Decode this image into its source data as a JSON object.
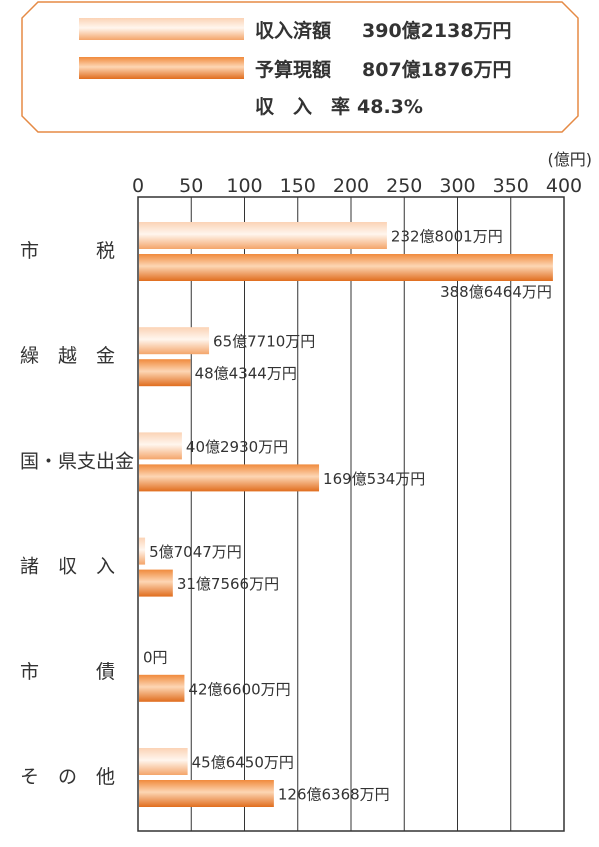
{
  "legend": {
    "received_label": "収入済額",
    "received_value": "390億2138万円",
    "budget_label": "予算現額",
    "budget_value": "807億1876万円",
    "rate_label": "収　入　率",
    "rate_value": "48.3%"
  },
  "chart_data": {
    "type": "bar",
    "orientation": "horizontal",
    "unit": "(億円)",
    "xlim": [
      0,
      400
    ],
    "ticks": [
      0,
      50,
      100,
      150,
      200,
      250,
      300,
      350,
      400
    ],
    "grid": true,
    "categories": [
      "市　　　税",
      "繰　越　金",
      "国・県支出金",
      "諸　収　入",
      "市　　　債",
      "そ　の　他"
    ],
    "series": [
      {
        "name": "収入済額",
        "values": [
          232.8001,
          65.771,
          40.293,
          5.7047,
          0,
          45.645
        ],
        "labels": [
          "232億8001万円",
          "65億7710万円",
          "40億2930万円",
          "5億7047万円",
          "0円",
          "45億6450万円"
        ],
        "color": "#f6b07c"
      },
      {
        "name": "予算現額",
        "values": [
          388.6464,
          48.4344,
          169.0534,
          31.7566,
          42.66,
          126.6368
        ],
        "labels": [
          "388億6464万円",
          "48億4344万円",
          "169億534万円",
          "31億7566万円",
          "42億6600万円",
          "126億6368万円"
        ],
        "color": "#e8782e"
      }
    ],
    "colors": {
      "frame": "#e58a45",
      "grid": "#333333"
    }
  }
}
